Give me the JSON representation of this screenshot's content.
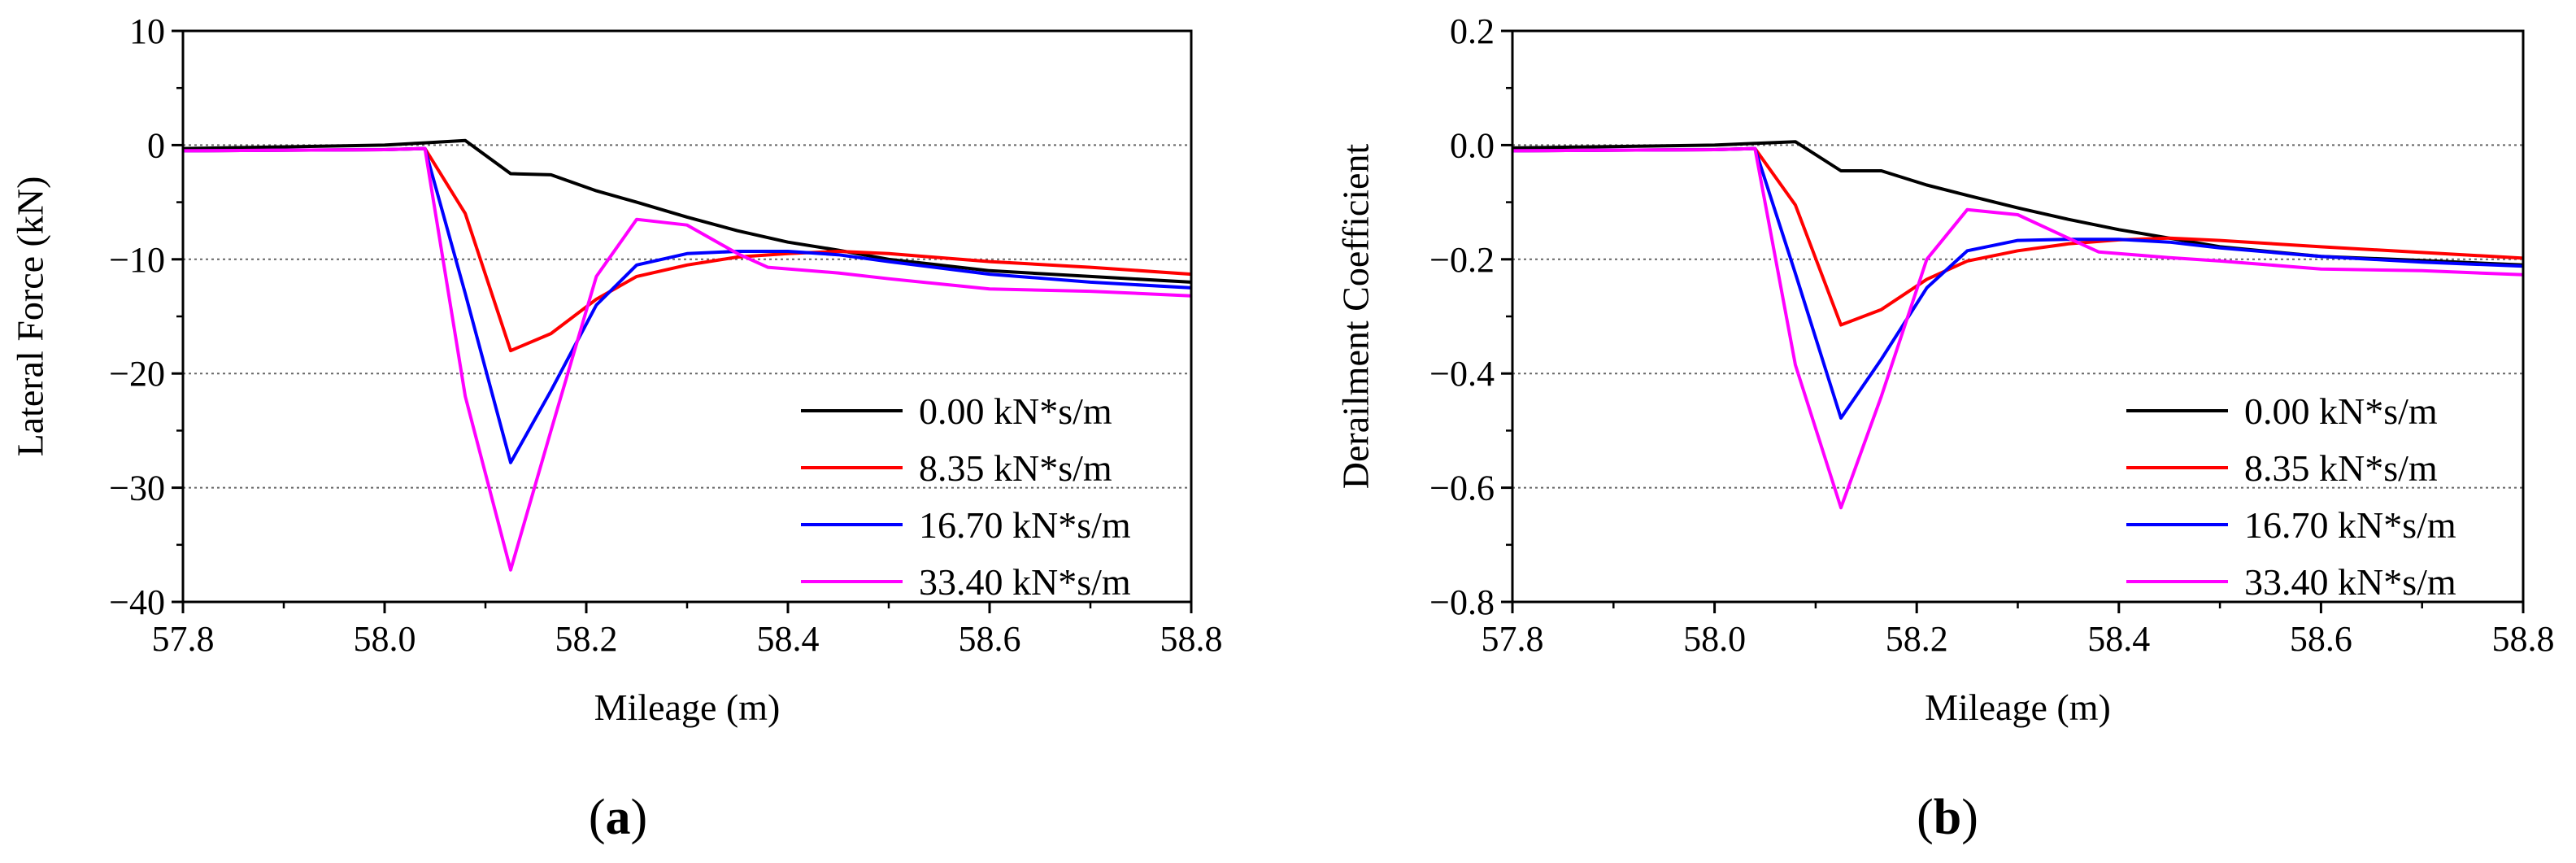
{
  "chart_data": [
    {
      "type": "line",
      "panel_label": "a",
      "xlabel": "Mileage (m)",
      "ylabel": "Lateral Force (kN)",
      "xlim": [
        57.8,
        58.8
      ],
      "ylim": [
        -40,
        10
      ],
      "xticks": [
        57.8,
        58.0,
        58.2,
        58.4,
        58.6,
        58.8
      ],
      "xtick_labels": [
        "57.8",
        "58.0",
        "58.2",
        "58.4",
        "58.6",
        "58.8"
      ],
      "yticks": [
        -40,
        -30,
        -20,
        -10,
        0,
        10
      ],
      "ytick_labels": [
        "−40",
        "−30",
        "−20",
        "−10",
        "0",
        "10"
      ],
      "grid_y": [
        -30,
        -20,
        -10,
        0
      ],
      "legend_position": "bottom-right",
      "series": [
        {
          "name": "0.00 kN*s/m",
          "color": "#000000",
          "x": [
            57.8,
            58.0,
            58.04,
            58.08,
            58.125,
            58.165,
            58.21,
            58.25,
            58.3,
            58.35,
            58.4,
            58.45,
            58.5,
            58.6,
            58.7,
            58.8
          ],
          "y": [
            -0.3,
            0.0,
            0.2,
            0.4,
            -2.5,
            -2.6,
            -4.0,
            -5.0,
            -6.3,
            -7.5,
            -8.5,
            -9.2,
            -10.0,
            -11.0,
            -11.5,
            -12.0
          ]
        },
        {
          "name": "8.35 kN*s/m",
          "color": "#ff0000",
          "x": [
            57.8,
            58.0,
            58.04,
            58.08,
            58.125,
            58.165,
            58.21,
            58.25,
            58.3,
            58.35,
            58.4,
            58.45,
            58.5,
            58.6,
            58.7,
            58.8
          ],
          "y": [
            -0.5,
            -0.4,
            -0.3,
            -6.0,
            -18.0,
            -16.5,
            -13.5,
            -11.5,
            -10.5,
            -9.8,
            -9.5,
            -9.3,
            -9.5,
            -10.2,
            -10.7,
            -11.3
          ]
        },
        {
          "name": "16.70 kN*s/m",
          "color": "#0000ff",
          "x": [
            57.8,
            58.0,
            58.04,
            58.08,
            58.125,
            58.165,
            58.21,
            58.25,
            58.3,
            58.35,
            58.4,
            58.45,
            58.5,
            58.6,
            58.7,
            58.8
          ],
          "y": [
            -0.5,
            -0.4,
            -0.3,
            -13.0,
            -27.8,
            -21.5,
            -14.0,
            -10.5,
            -9.5,
            -9.3,
            -9.3,
            -9.6,
            -10.2,
            -11.3,
            -12.0,
            -12.5
          ]
        },
        {
          "name": "33.40 kN*s/m",
          "color": "#ff00ff",
          "x": [
            57.8,
            58.0,
            58.04,
            58.08,
            58.125,
            58.165,
            58.21,
            58.25,
            58.3,
            58.35,
            58.38,
            58.45,
            58.5,
            58.6,
            58.7,
            58.8
          ],
          "y": [
            -0.5,
            -0.4,
            -0.3,
            -22.0,
            -37.2,
            -25.0,
            -11.5,
            -6.5,
            -7.0,
            -9.5,
            -10.7,
            -11.2,
            -11.7,
            -12.6,
            -12.8,
            -13.2
          ]
        }
      ]
    },
    {
      "type": "line",
      "panel_label": "b",
      "xlabel": "Mileage (m)",
      "ylabel": "Derailment Coefficient",
      "xlim": [
        57.8,
        58.8
      ],
      "ylim": [
        -0.8,
        0.2
      ],
      "xticks": [
        57.8,
        58.0,
        58.2,
        58.4,
        58.6,
        58.8
      ],
      "xtick_labels": [
        "57.8",
        "58.0",
        "58.2",
        "58.4",
        "58.6",
        "58.8"
      ],
      "yticks": [
        -0.8,
        -0.6,
        -0.4,
        -0.2,
        0.0,
        0.2
      ],
      "ytick_labels": [
        "−0.8",
        "−0.6",
        "−0.4",
        "−0.2",
        "0.0",
        "0.2"
      ],
      "grid_y": [
        -0.6,
        -0.4,
        -0.2,
        0.0
      ],
      "legend_position": "bottom-right",
      "series": [
        {
          "name": "0.00 kN*s/m",
          "color": "#000000",
          "x": [
            57.8,
            58.0,
            58.04,
            58.08,
            58.125,
            58.165,
            58.21,
            58.25,
            58.3,
            58.35,
            58.4,
            58.45,
            58.5,
            58.6,
            58.7,
            58.8
          ],
          "y": [
            -0.005,
            0.0,
            0.003,
            0.006,
            -0.045,
            -0.045,
            -0.07,
            -0.088,
            -0.11,
            -0.13,
            -0.148,
            -0.163,
            -0.178,
            -0.195,
            -0.202,
            -0.21
          ]
        },
        {
          "name": "8.35 kN*s/m",
          "color": "#ff0000",
          "x": [
            57.8,
            58.0,
            58.04,
            58.08,
            58.125,
            58.165,
            58.21,
            58.25,
            58.3,
            58.35,
            58.4,
            58.45,
            58.5,
            58.6,
            58.7,
            58.8
          ],
          "y": [
            -0.01,
            -0.008,
            -0.006,
            -0.105,
            -0.315,
            -0.288,
            -0.235,
            -0.203,
            -0.185,
            -0.173,
            -0.166,
            -0.163,
            -0.167,
            -0.178,
            -0.188,
            -0.198
          ]
        },
        {
          "name": "16.70 kN*s/m",
          "color": "#0000ff",
          "x": [
            57.8,
            58.0,
            58.04,
            58.08,
            58.125,
            58.165,
            58.21,
            58.25,
            58.3,
            58.35,
            58.4,
            58.45,
            58.5,
            58.6,
            58.7,
            58.8
          ],
          "y": [
            -0.01,
            -0.008,
            -0.006,
            -0.225,
            -0.478,
            -0.375,
            -0.25,
            -0.185,
            -0.167,
            -0.165,
            -0.165,
            -0.17,
            -0.18,
            -0.195,
            -0.205,
            -0.212
          ]
        },
        {
          "name": "33.40 kN*s/m",
          "color": "#ff00ff",
          "x": [
            57.8,
            58.0,
            58.04,
            58.08,
            58.125,
            58.165,
            58.21,
            58.25,
            58.3,
            58.35,
            58.38,
            58.45,
            58.5,
            58.6,
            58.7,
            58.8
          ],
          "y": [
            -0.01,
            -0.008,
            -0.006,
            -0.385,
            -0.635,
            -0.44,
            -0.2,
            -0.113,
            -0.122,
            -0.163,
            -0.187,
            -0.197,
            -0.203,
            -0.217,
            -0.22,
            -0.227
          ]
        }
      ]
    }
  ]
}
